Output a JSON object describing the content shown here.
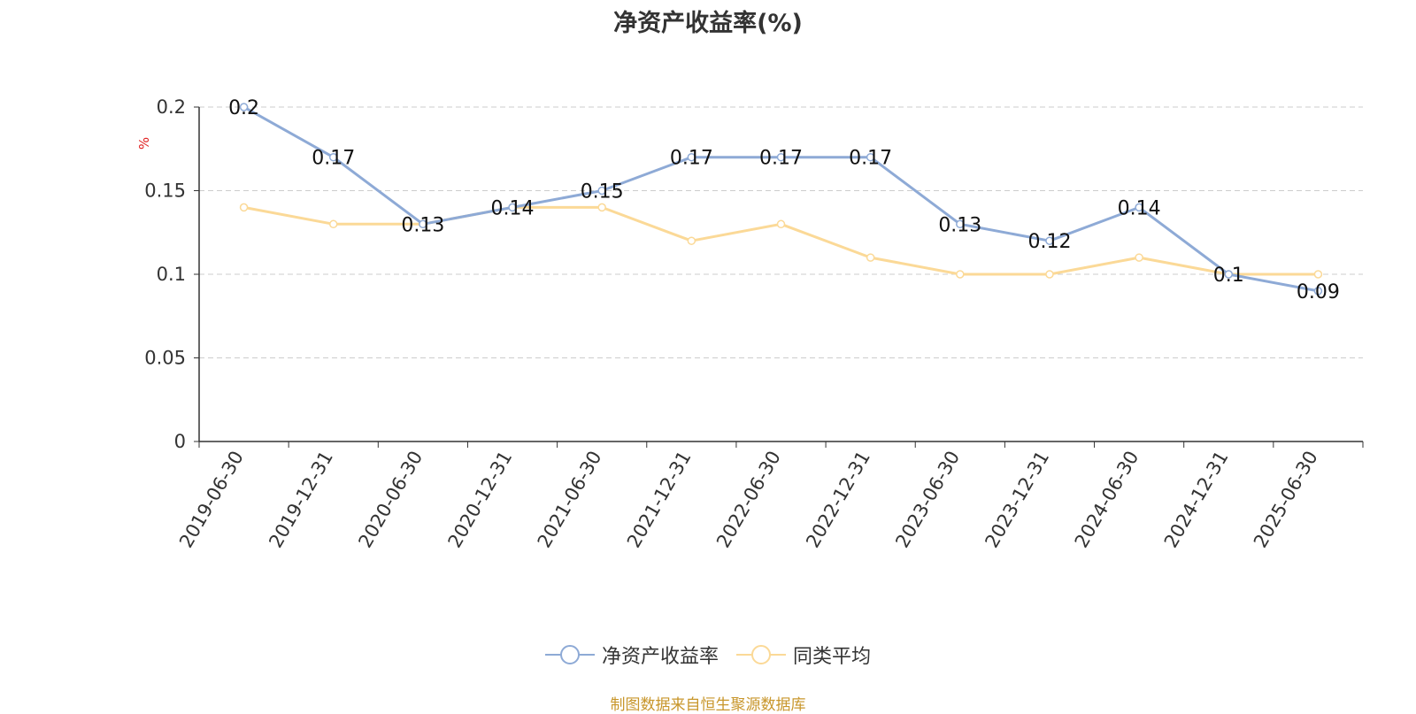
{
  "chart_data": {
    "type": "line",
    "title": "净资产收益率(%)",
    "ylabel": "%",
    "xlabel": "",
    "ylim": [
      0,
      0.2
    ],
    "yticks": [
      "0",
      "0.05",
      "0.1",
      "0.15",
      "0.2"
    ],
    "grid": true,
    "legend_position": "bottom",
    "categories": [
      "2019-06-30",
      "2019-12-31",
      "2020-06-30",
      "2020-12-31",
      "2021-06-30",
      "2021-12-31",
      "2022-06-30",
      "2022-12-31",
      "2023-06-30",
      "2023-12-31",
      "2024-06-30",
      "2024-12-31",
      "2025-06-30"
    ],
    "series": [
      {
        "name": "净资产收益率",
        "color": "#8eaad6",
        "values": [
          0.2,
          0.17,
          0.13,
          0.14,
          0.15,
          0.17,
          0.17,
          0.17,
          0.13,
          0.12,
          0.14,
          0.1,
          0.09
        ],
        "data_labels": true
      },
      {
        "name": "同类平均",
        "color": "#fbd997",
        "values": [
          0.14,
          0.13,
          0.13,
          0.14,
          0.14,
          0.12,
          0.13,
          0.11,
          0.1,
          0.1,
          0.11,
          0.1,
          0.1
        ],
        "data_labels": false
      }
    ]
  },
  "source_note": "制图数据来自恒生聚源数据库"
}
